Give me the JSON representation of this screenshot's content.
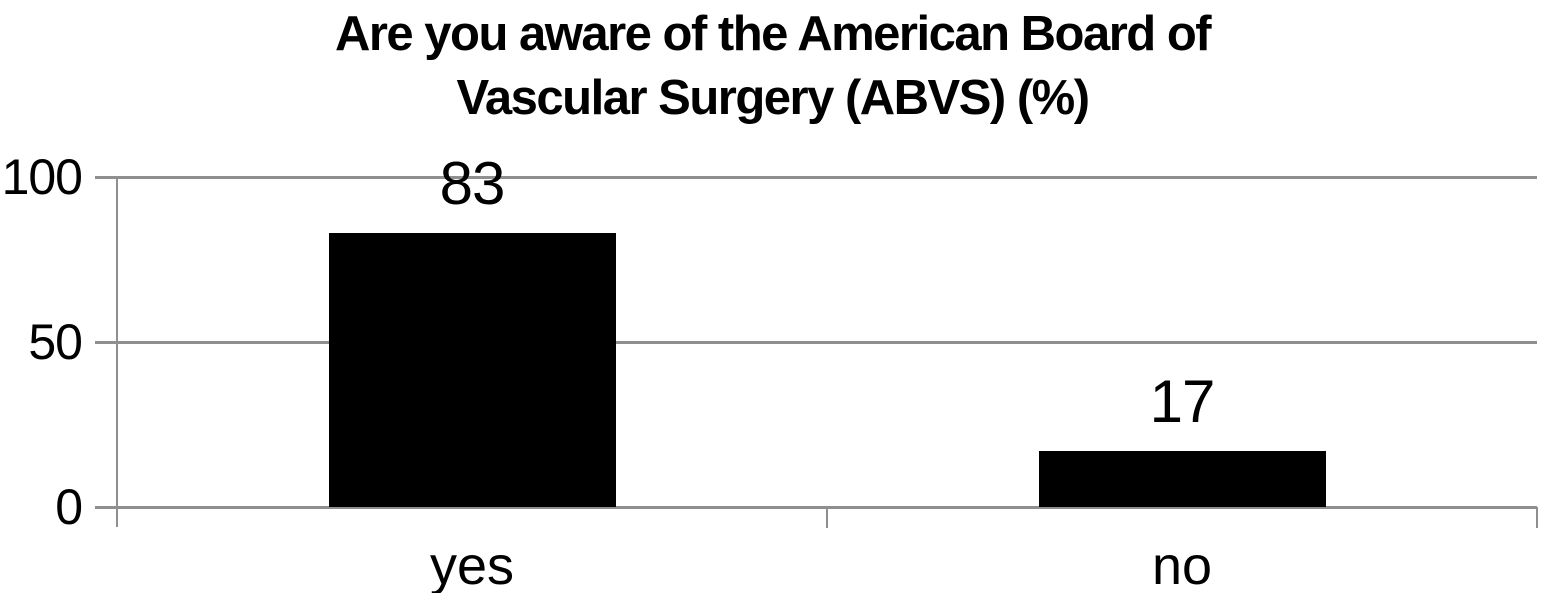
{
  "chart_data": {
    "type": "bar",
    "title": "Are you aware of the American Board of Vascular Surgery (ABVS) (%)",
    "title_lines": [
      "Are you aware of the American Board of",
      "Vascular Surgery (ABVS) (%)"
    ],
    "categories": [
      "yes",
      "no"
    ],
    "values": [
      83,
      17
    ],
    "yticks": [
      0,
      50,
      100
    ],
    "ylim": [
      0,
      100
    ],
    "xlabel": "",
    "ylabel": "",
    "grid": true,
    "legend_position": "none",
    "bar_color": "#000000",
    "grid_color": "#8f8f8f",
    "text_color": "#000000",
    "background_color": "#ffffff"
  }
}
